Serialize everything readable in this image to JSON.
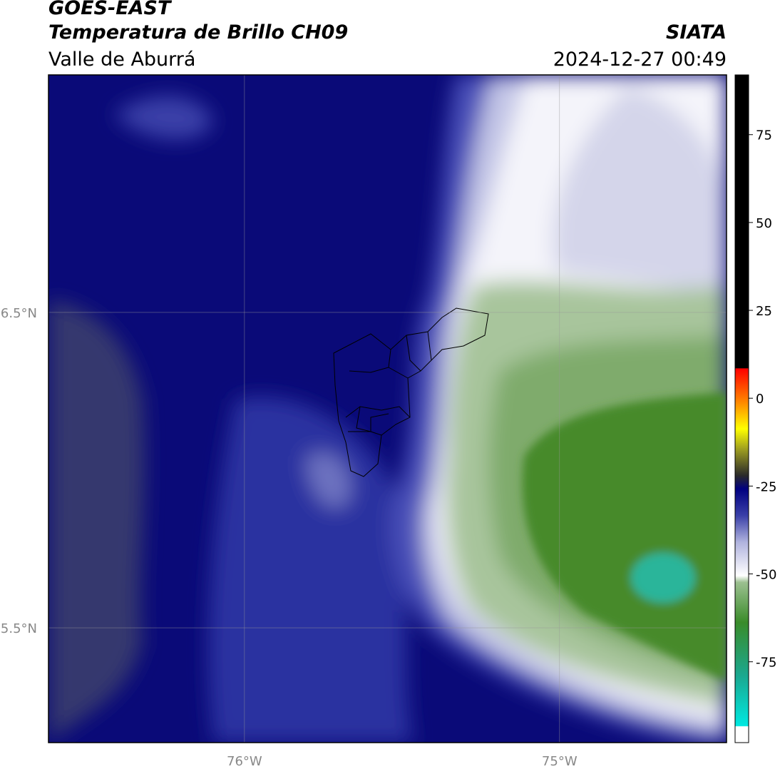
{
  "chart_data": {
    "type": "map",
    "title": "GOES-EAST",
    "subtitle": "Temperatura de Brillo CH09",
    "region": "Valle de Aburrá",
    "source": "SIATA",
    "timestamp": "2024-12-27 00:49",
    "xlim": [
      -76.622,
      -74.47
    ],
    "ylim": [
      5.136,
      7.253
    ],
    "xticks": [
      {
        "value": -76,
        "label": "76°W"
      },
      {
        "value": -75,
        "label": "75°W"
      }
    ],
    "yticks": [
      {
        "value": 6.5,
        "label": "6.5°N"
      },
      {
        "value": 5.5,
        "label": "5.5°N"
      }
    ],
    "grid": true,
    "colorbar": {
      "lim": [
        -98,
        92
      ],
      "ticks": [
        75,
        50,
        25,
        0,
        -25,
        -50,
        -75
      ]
    }
  }
}
